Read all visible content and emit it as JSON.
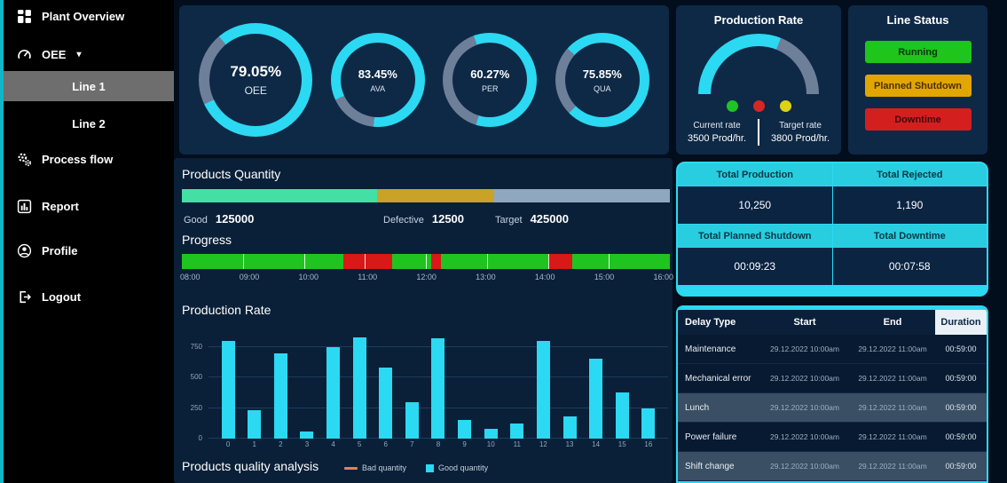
{
  "colors": {
    "cyan": "#2bd9f2",
    "ring_track": "#6e7f99",
    "sidebar_accent": "#10b5c8",
    "panel": "#0e2946",
    "page_bg": "#030e1d"
  },
  "sidebar": {
    "items": [
      {
        "id": "plant-overview",
        "label": "Plant Overview",
        "icon": "dashboard-icon"
      },
      {
        "id": "oee",
        "label": "OEE",
        "icon": "gauge-icon",
        "caret": "▾"
      },
      {
        "id": "line-1",
        "label": "Line 1",
        "selected": true
      },
      {
        "id": "line-2",
        "label": "Line 2",
        "selected": false
      },
      {
        "id": "process-flow",
        "label": "Process flow",
        "icon": "gears-icon"
      },
      {
        "id": "report",
        "label": "Report",
        "icon": "report-icon"
      },
      {
        "id": "profile",
        "label": "Profile",
        "icon": "profile-icon"
      },
      {
        "id": "logout",
        "label": "Logout",
        "icon": "logout-icon"
      }
    ]
  },
  "kpi_gauges": [
    {
      "value_text": "79.05%",
      "label": "OEE",
      "percent": 79.05,
      "start_deg": 320
    },
    {
      "value_text": "83.45%",
      "label": "AVA",
      "percent": 83.45,
      "start_deg": 245
    },
    {
      "value_text": "60.27%",
      "label": "PER",
      "percent": 60.27,
      "start_deg": 340
    },
    {
      "value_text": "75.85%",
      "label": "QUA",
      "percent": 75.85,
      "start_deg": 312
    }
  ],
  "production_rate_panel": {
    "title": "Production Rate",
    "gauge_fill_percent": 62,
    "lights": [
      {
        "name": "green-light",
        "color": "#1fc326"
      },
      {
        "name": "red-light",
        "color": "#d62626"
      },
      {
        "name": "yellow-light",
        "color": "#ddd214"
      }
    ],
    "current_rate_label": "Current rate",
    "current_rate_value": "3500 Prod/hr.",
    "target_rate_label": "Target rate",
    "target_rate_value": "3800 Prod/hr."
  },
  "line_status_panel": {
    "title": "Line Status",
    "statuses": [
      {
        "label": "Running",
        "bg": "#1dc51d",
        "fg": "#05350a"
      },
      {
        "label": "Planned Shutdown",
        "bg": "#e2a600",
        "fg": "#4a3000"
      },
      {
        "label": "Downtime",
        "bg": "#d41f1f",
        "fg": "#3f0a0a"
      }
    ]
  },
  "products_quantity": {
    "title": "Products Quantity",
    "segments": [
      {
        "name": "good",
        "color": "#44dfa4",
        "width_percent": 40
      },
      {
        "name": "defective",
        "color": "#c9a227",
        "width_percent": 24
      },
      {
        "name": "remaining",
        "color": "#8fa8c0",
        "width_percent": 36
      }
    ],
    "stats": [
      {
        "label": "Good",
        "value": "125000"
      },
      {
        "label": "Defective",
        "value": "12500"
      },
      {
        "label": "Target",
        "value": "425000"
      }
    ]
  },
  "progress": {
    "title": "Progress",
    "segments": [
      {
        "color": "#1fc41f",
        "width_percent": 33
      },
      {
        "color": "#d91818",
        "width_percent": 10
      },
      {
        "color": "#1fc41f",
        "width_percent": 8
      },
      {
        "color": "#d91818",
        "width_percent": 2
      },
      {
        "color": "#1fc41f",
        "width_percent": 22
      },
      {
        "color": "#d91818",
        "width_percent": 5
      },
      {
        "color": "#1fc41f",
        "width_percent": 20
      }
    ],
    "time_labels": [
      "08:00",
      "09:00",
      "10:00",
      "11:00",
      "12:00",
      "13:00",
      "14:00",
      "15:00",
      "16:00"
    ]
  },
  "chart_data": {
    "type": "bar",
    "title": "Production Rate",
    "x": [
      0,
      1,
      2,
      3,
      4,
      5,
      6,
      7,
      8,
      9,
      10,
      11,
      12,
      13,
      14,
      15,
      16
    ],
    "values": [
      800,
      230,
      700,
      60,
      750,
      830,
      580,
      300,
      820,
      150,
      80,
      120,
      800,
      180,
      650,
      380,
      250
    ],
    "bar_color": "#2bd9f2",
    "xlabel": "",
    "ylabel": "",
    "ylim": [
      0,
      900
    ],
    "yticks": [
      0,
      250,
      500,
      750
    ],
    "grid": true,
    "legend_position": "none"
  },
  "quality_analysis": {
    "title": "Products quality analysis",
    "legend": [
      {
        "label": "Bad quantity",
        "color": "#ee7b59",
        "shape": "line"
      },
      {
        "label": "Good quantity",
        "color": "#2bd9f2",
        "shape": "square"
      }
    ]
  },
  "totals_table": {
    "cells": [
      {
        "header": "Total Production",
        "value": "10,250"
      },
      {
        "header": "Total Rejected",
        "value": "1,190"
      },
      {
        "header": "Total Planned Shutdown",
        "value": "00:09:23"
      },
      {
        "header": "Total Downtime",
        "value": "00:07:58"
      }
    ]
  },
  "delay_table": {
    "columns": [
      "Delay Type",
      "Start",
      "End",
      "Duration"
    ],
    "rows": [
      {
        "type": "Maintenance",
        "start": "29.12.2022 10:00am",
        "end": "29.12.2022 11:00am",
        "duration": "00:59:00",
        "planned": false
      },
      {
        "type": "Mechanical error",
        "start": "29.12.2022 10:00am",
        "end": "29.12.2022 11:00am",
        "duration": "00:59:00",
        "planned": false
      },
      {
        "type": "Lunch",
        "start": "29.12.2022 10:00am",
        "end": "29.12.2022 11:00am",
        "duration": "00:59:00",
        "planned": true
      },
      {
        "type": "Power failure",
        "start": "29.12.2022 10:00am",
        "end": "29.12.2022 11:00am",
        "duration": "00:59:00",
        "planned": false
      },
      {
        "type": "Shift change",
        "start": "29.12.2022 10:00am",
        "end": "29.12.2022 11:00am",
        "duration": "00:59:00",
        "planned": true
      }
    ]
  }
}
